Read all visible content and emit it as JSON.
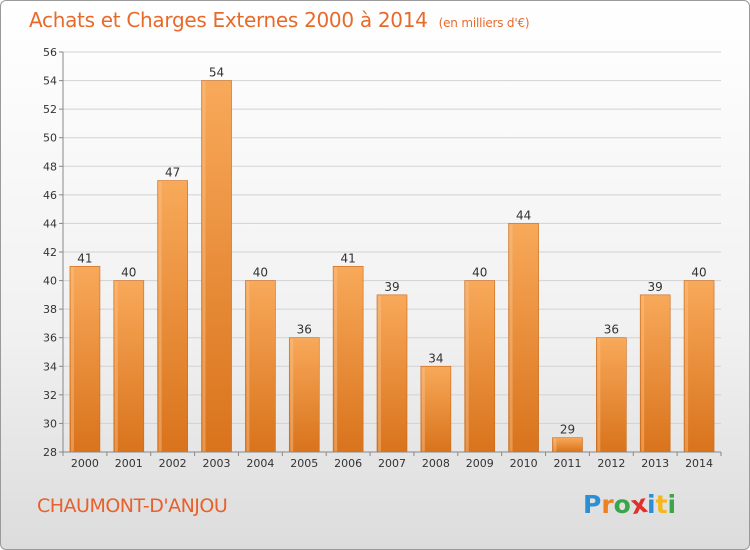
{
  "title": "Achats et Charges Externes 2000 à 2014",
  "subtitle": "(en milliers d'€)",
  "commune": "CHAUMONT-D'ANJOU",
  "logo": {
    "text": "Proxiti",
    "letters": [
      {
        "char": "P",
        "color": "#2b8fd6"
      },
      {
        "char": "r",
        "color": "#f07f1e"
      },
      {
        "char": "o",
        "color": "#3aa64a"
      },
      {
        "char": "x",
        "color": "#e0302b"
      },
      {
        "char": "i",
        "color": "#2b8fd6"
      },
      {
        "char": "t",
        "color": "#f2b81e"
      },
      {
        "char": "i",
        "color": "#3aa64a"
      }
    ]
  },
  "colors": {
    "title": "#e86a2b",
    "bar_top": "#f8a95a",
    "bar_bottom": "#d9731c",
    "bar_edge": "#c9681a",
    "grid": "#d2d2d2",
    "axis": "#888888",
    "label": "#333333"
  },
  "chart_data": {
    "type": "bar",
    "title": "Achats et Charges Externes 2000 à 2014",
    "subtitle": "(en milliers d'€)",
    "categories": [
      "2000",
      "2001",
      "2002",
      "2003",
      "2004",
      "2005",
      "2006",
      "2007",
      "2008",
      "2009",
      "2010",
      "2011",
      "2012",
      "2013",
      "2014"
    ],
    "values": [
      41,
      40,
      47,
      54,
      40,
      36,
      41,
      39,
      34,
      40,
      44,
      29,
      36,
      39,
      40
    ],
    "ylim": [
      28,
      56
    ],
    "yticks": [
      28,
      30,
      32,
      34,
      36,
      38,
      40,
      42,
      44,
      46,
      48,
      50,
      52,
      54,
      56
    ],
    "xlabel": "",
    "ylabel": "",
    "grid": true,
    "data_labels": true
  }
}
